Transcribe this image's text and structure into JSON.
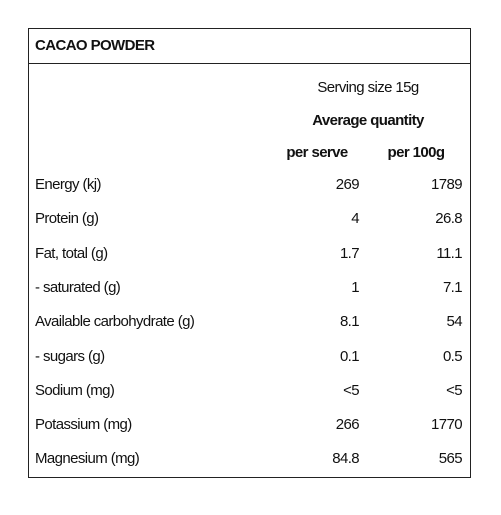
{
  "title": "CACAO POWDER",
  "serving_size": "Serving size 15g",
  "average_quantity": "Average quantity",
  "columns": [
    "per serve",
    "per 100g"
  ],
  "rows": [
    [
      "Energy (kj)",
      269,
      1789
    ],
    [
      "Protein (g)",
      4,
      26.8
    ],
    [
      "Fat, total (g)",
      1.7,
      11.1
    ],
    [
      "- saturated (g)",
      1,
      7.1
    ],
    [
      "Available carbohydrate (g)",
      8.1,
      54
    ],
    [
      "- sugars (g)",
      0.1,
      0.5
    ],
    [
      "Sodium (mg)",
      "<5",
      "<5"
    ],
    [
      "Potassium (mg)",
      266,
      1770
    ],
    [
      "Magnesium (mg)",
      84.8,
      565
    ]
  ]
}
